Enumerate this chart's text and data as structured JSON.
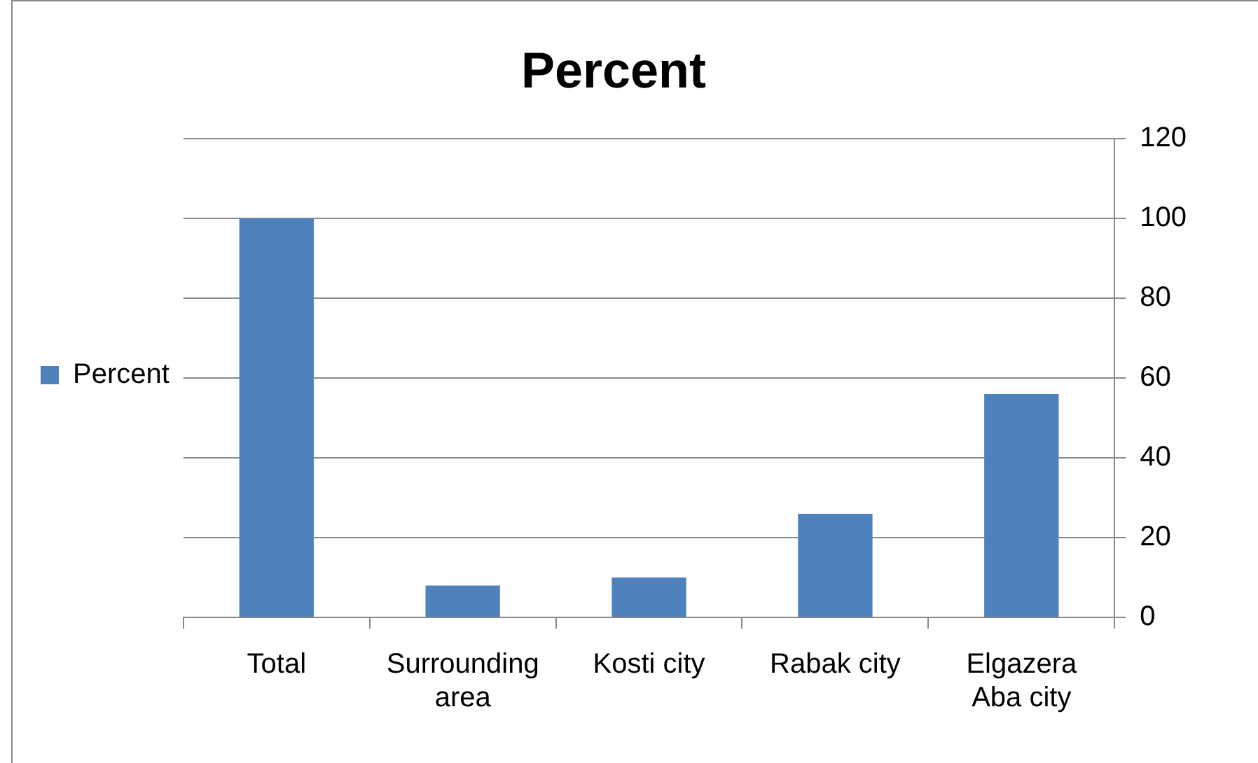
{
  "chart_data": {
    "type": "bar",
    "title": "Percent",
    "categories": [
      "Total",
      "Surrounding area",
      "Kosti city",
      "Rabak city",
      "Elgazera Aba city"
    ],
    "series": [
      {
        "name": "Percent",
        "color": "#4f81bd",
        "values": [
          100,
          8,
          10,
          26,
          56
        ]
      }
    ],
    "ylim": [
      0,
      120
    ],
    "yticks": [
      0,
      20,
      40,
      60,
      80,
      100,
      120
    ],
    "grid": "y",
    "legend": "left"
  }
}
